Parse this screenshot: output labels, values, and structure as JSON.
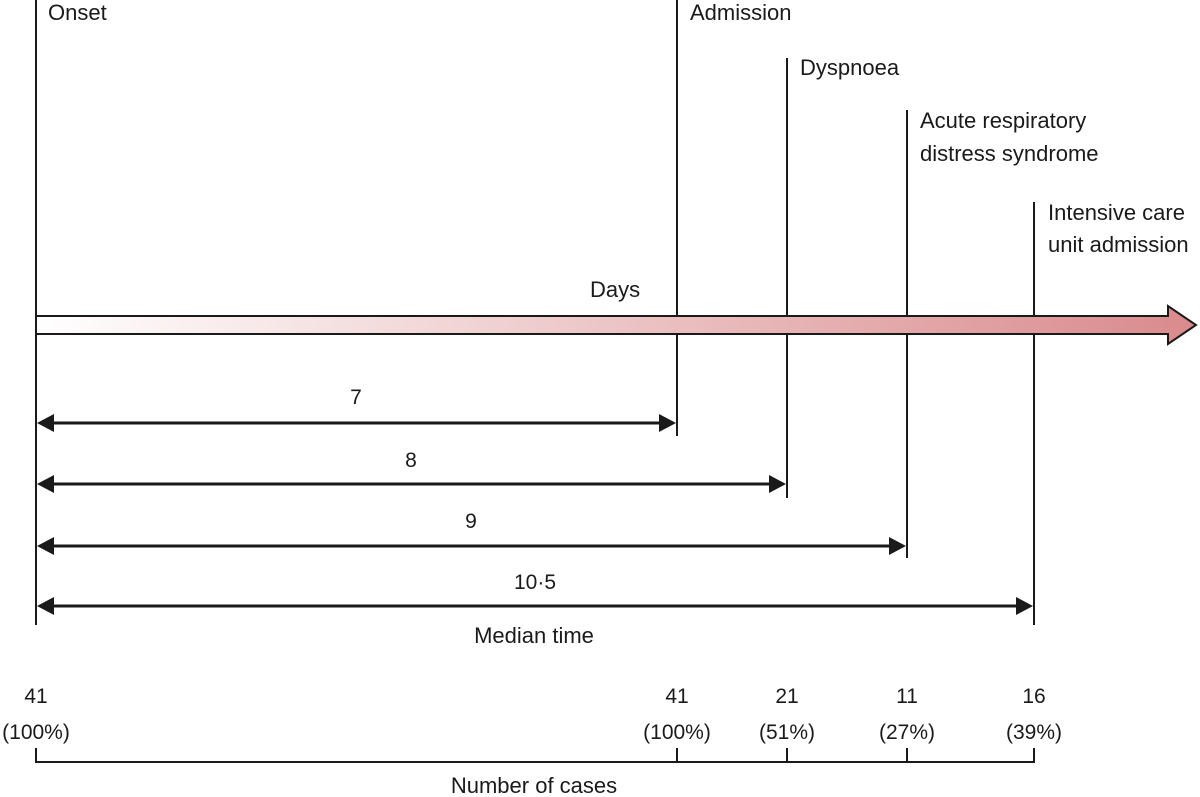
{
  "events": [
    {
      "key": "onset",
      "label_lines": [
        "Onset"
      ],
      "cases": "41",
      "percent": "(100%)"
    },
    {
      "key": "admission",
      "label_lines": [
        "Admission"
      ],
      "cases": "41",
      "percent": "(100%)"
    },
    {
      "key": "dyspnoea",
      "label_lines": [
        "Dyspnoea"
      ],
      "cases": "21",
      "percent": "(51%)"
    },
    {
      "key": "ards",
      "label_lines": [
        "Acute respiratory",
        "distress syndrome"
      ],
      "cases": "11",
      "percent": "(27%)"
    },
    {
      "key": "icu",
      "label_lines": [
        "Intensive care",
        "unit admission"
      ],
      "cases": "16",
      "percent": "(39%)"
    }
  ],
  "axis_label": "Days",
  "median_times": [
    "7",
    "8",
    "9",
    "10·5"
  ],
  "median_label": "Median time",
  "cases_label": "Number of cases",
  "colors": {
    "line": "#1a1a1a",
    "arrow_start": "#ffffff",
    "arrow_end": "#d98a8c"
  }
}
